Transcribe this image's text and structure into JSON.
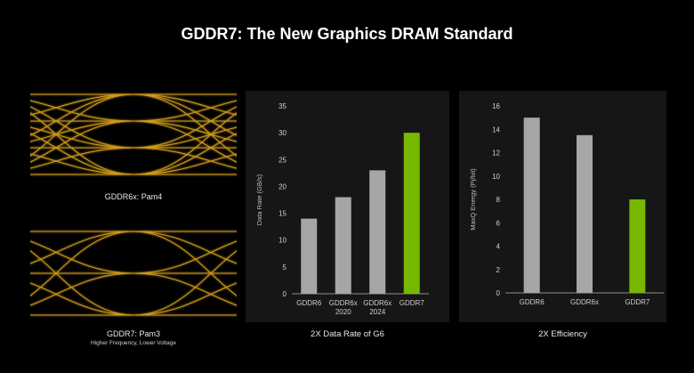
{
  "title": "GDDR7: The New Graphics DRAM Standard",
  "eye_top": {
    "label": "GDDR6x: Pam4"
  },
  "eye_bottom": {
    "label": "GDDR7: Pam3",
    "sublabel": "Higher Frequency, Lower Voltage"
  },
  "colors": {
    "eye": "#d9a21a",
    "gray_bar": "#a6a6a6",
    "green_bar": "#76b900",
    "panel_bg": "#161616",
    "axis": "#8c8c8c",
    "tick_text": "#d0d0d0"
  },
  "chart_data": [
    {
      "type": "bar",
      "caption": "2X Data Rate of G6",
      "ylabel": "Data Rate (GB/s)",
      "ylim": [
        0,
        35
      ],
      "yticks": [
        0,
        5,
        10,
        15,
        20,
        25,
        30,
        35
      ],
      "categories": [
        [
          "GDDR6"
        ],
        [
          "GDDR6x",
          "2020"
        ],
        [
          "GDDR6x",
          "2024"
        ],
        [
          "GDDR7"
        ]
      ],
      "values": [
        14,
        18,
        23,
        30
      ],
      "highlight_index": 3
    },
    {
      "type": "bar",
      "caption": "2X Efficiency",
      "ylabel": "MaxQ Energy (Pj/bit)",
      "ylim": [
        0,
        16
      ],
      "yticks": [
        0,
        2,
        4,
        6,
        8,
        10,
        12,
        14,
        16
      ],
      "categories": [
        [
          "GDDR6"
        ],
        [
          "GDDR6x"
        ],
        [
          "GDDR7"
        ]
      ],
      "values": [
        15,
        13.5,
        8
      ],
      "highlight_index": 2
    }
  ]
}
